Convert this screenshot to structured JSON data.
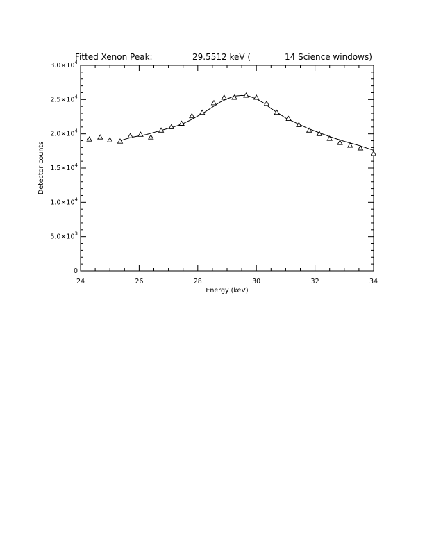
{
  "chart_data": {
    "type": "scatter",
    "title": {
      "left": "Fitted Xenon Peak:",
      "energy": "29.5512 keV (",
      "windows": "14 Science windows)"
    },
    "xlabel": "Energy (keV)",
    "ylabel": "Detector counts",
    "xlim": [
      24,
      34
    ],
    "ylim": [
      0,
      30000
    ],
    "x_ticks": [
      {
        "value": 24,
        "label": "24"
      },
      {
        "value": 26,
        "label": "26"
      },
      {
        "value": 28,
        "label": "28"
      },
      {
        "value": 30,
        "label": "30"
      },
      {
        "value": 32,
        "label": "32"
      },
      {
        "value": 34,
        "label": "34"
      }
    ],
    "y_ticks": [
      {
        "value": 0,
        "mantissa": "0",
        "exponent": ""
      },
      {
        "value": 5000,
        "mantissa": "5.0×10",
        "exponent": "3"
      },
      {
        "value": 10000,
        "mantissa": "1.0×10",
        "exponent": "4"
      },
      {
        "value": 15000,
        "mantissa": "1.5×10",
        "exponent": "4"
      },
      {
        "value": 20000,
        "mantissa": "2.0×10",
        "exponent": "4"
      },
      {
        "value": 25000,
        "mantissa": "2.5×10",
        "exponent": "4"
      },
      {
        "value": 30000,
        "mantissa": "3.0×10",
        "exponent": "4"
      }
    ],
    "x_minor_step": 0.5,
    "y_minor_step": 1000,
    "marker": "triangle",
    "grid": false,
    "series": [
      {
        "type": "scatter",
        "x": [
          24.3,
          24.67,
          25.0,
          25.35,
          25.7,
          26.05,
          26.4,
          26.75,
          27.1,
          27.45,
          27.8,
          28.15,
          28.55,
          28.9,
          29.25,
          29.65,
          30.0,
          30.35,
          30.7,
          31.1,
          31.45,
          31.8,
          32.15,
          32.5,
          32.85,
          33.2,
          33.55,
          34.0
        ],
        "y": [
          19200,
          19500,
          19100,
          18900,
          19700,
          19900,
          19500,
          20500,
          21000,
          21500,
          22600,
          23100,
          24500,
          25300,
          25300,
          25600,
          25300,
          24400,
          23100,
          22200,
          21300,
          20500,
          20000,
          19300,
          18700,
          18300,
          17900,
          17100
        ]
      },
      {
        "type": "line",
        "x": [
          25.3,
          25.5,
          25.75,
          26.0,
          26.25,
          26.5,
          26.75,
          27.0,
          27.25,
          27.5,
          27.75,
          28.0,
          28.25,
          28.5,
          28.75,
          29.0,
          29.25,
          29.5,
          29.75,
          30.0,
          30.25,
          30.5,
          30.75,
          31.0,
          31.25,
          31.5,
          31.75,
          32.0,
          32.5,
          33.0,
          33.5,
          34.0
        ],
        "y": [
          18900,
          19200,
          19500,
          19700,
          19900,
          20200,
          20500,
          20800,
          21100,
          21500,
          22000,
          22600,
          23200,
          23900,
          24600,
          25100,
          25500,
          25600,
          25500,
          25100,
          24500,
          23700,
          23000,
          22300,
          21800,
          21300,
          20800,
          20400,
          19600,
          18900,
          18300,
          17600
        ]
      }
    ]
  }
}
